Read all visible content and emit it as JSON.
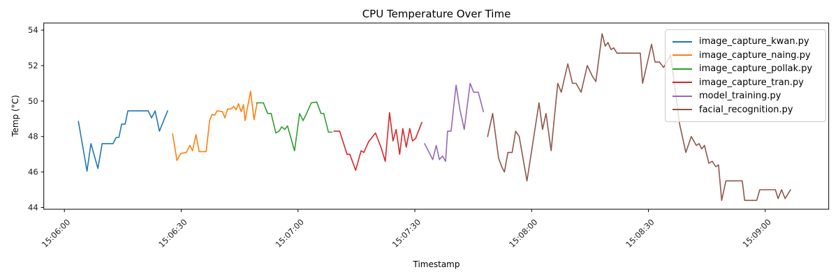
{
  "chart_data": {
    "type": "line",
    "title": "CPU Temperature Over Time",
    "xlabel": "Timestamp",
    "ylabel": "Temp (°C)",
    "grid": false,
    "legend_position": "upper right",
    "x_axis": {
      "unit": "seconds after 15:06:00",
      "min_s": -5.3,
      "max_s": 196.3,
      "tick_values_s": [
        0,
        30,
        60,
        90,
        120,
        150,
        180
      ],
      "tick_labels": [
        "15:06:00",
        "15:06:30",
        "15:07:00",
        "15:07:30",
        "15:08:00",
        "15:08:30",
        "15:09:00"
      ],
      "tick_label_rotation_deg": 45
    },
    "y_axis": {
      "min": 43.9,
      "max": 54.4,
      "tick_values": [
        44,
        46,
        48,
        50,
        52,
        54
      ],
      "tick_labels": [
        "44",
        "46",
        "48",
        "50",
        "52",
        "54"
      ]
    },
    "series": [
      {
        "name": "image_capture_kwan.py",
        "color": "#1f77b4",
        "points": [
          [
            3.6,
            48.85
          ],
          [
            5.8,
            46.05
          ],
          [
            6.8,
            47.6
          ],
          [
            8.6,
            46.2
          ],
          [
            9.7,
            47.6
          ],
          [
            12.5,
            47.6
          ],
          [
            13.3,
            47.95
          ],
          [
            14.0,
            47.95
          ],
          [
            14.7,
            48.7
          ],
          [
            15.6,
            48.7
          ],
          [
            16.3,
            49.45
          ],
          [
            21.5,
            49.45
          ],
          [
            22.4,
            49.05
          ],
          [
            23.3,
            49.45
          ],
          [
            24.4,
            48.3
          ],
          [
            26.5,
            49.45
          ]
        ]
      },
      {
        "name": "image_capture_naing.py",
        "color": "#ff7f0e",
        "points": [
          [
            27.8,
            48.15
          ],
          [
            28.9,
            46.65
          ],
          [
            29.9,
            47.05
          ],
          [
            31.3,
            47.1
          ],
          [
            32.2,
            47.5
          ],
          [
            32.9,
            47.2
          ],
          [
            33.8,
            48.1
          ],
          [
            34.6,
            47.15
          ],
          [
            36.4,
            47.15
          ],
          [
            37.3,
            48.9
          ],
          [
            37.9,
            49.25
          ],
          [
            38.6,
            49.2
          ],
          [
            39.2,
            49.45
          ],
          [
            40.6,
            49.4
          ],
          [
            41.2,
            49.05
          ],
          [
            41.9,
            49.55
          ],
          [
            42.8,
            49.55
          ],
          [
            43.5,
            49.7
          ],
          [
            44.1,
            49.5
          ],
          [
            44.7,
            49.85
          ],
          [
            45.4,
            49.4
          ],
          [
            46.0,
            49.8
          ],
          [
            46.4,
            48.9
          ],
          [
            47.8,
            50.55
          ],
          [
            48.7,
            48.95
          ],
          [
            49.5,
            49.9
          ]
        ]
      },
      {
        "name": "image_capture_pollak.py",
        "color": "#2ca02c",
        "points": [
          [
            49.3,
            49.9
          ],
          [
            51.1,
            49.9
          ],
          [
            52.2,
            49.3
          ],
          [
            53.1,
            49.3
          ],
          [
            54.3,
            48.2
          ],
          [
            55.1,
            48.3
          ],
          [
            55.8,
            48.55
          ],
          [
            56.6,
            48.4
          ],
          [
            57.3,
            48.6
          ],
          [
            59.1,
            47.2
          ],
          [
            60.4,
            49.3
          ],
          [
            61.3,
            48.9
          ],
          [
            62.2,
            49.3
          ],
          [
            63.4,
            49.9
          ],
          [
            64.8,
            49.95
          ],
          [
            65.9,
            49.3
          ],
          [
            66.6,
            49.3
          ],
          [
            67.8,
            48.25
          ],
          [
            68.7,
            48.25
          ]
        ]
      },
      {
        "name": "image_capture_tran.py",
        "color": "#d62728",
        "points": [
          [
            69.2,
            48.3
          ],
          [
            70.7,
            48.3
          ],
          [
            72.6,
            47.0
          ],
          [
            73.3,
            47.0
          ],
          [
            74.8,
            46.1
          ],
          [
            76.2,
            47.2
          ],
          [
            76.9,
            47.1
          ],
          [
            78.1,
            47.7
          ],
          [
            79.9,
            48.2
          ],
          [
            81.3,
            47.4
          ],
          [
            82.4,
            46.6
          ],
          [
            83.5,
            49.35
          ],
          [
            84.4,
            47.75
          ],
          [
            85.2,
            48.4
          ],
          [
            86.1,
            47.0
          ],
          [
            86.9,
            48.45
          ],
          [
            87.8,
            47.4
          ],
          [
            88.7,
            48.45
          ],
          [
            89.4,
            47.75
          ],
          [
            90.2,
            47.9
          ],
          [
            91.8,
            48.8
          ]
        ]
      },
      {
        "name": "model_training.py",
        "color": "#9467bd",
        "points": [
          [
            92.5,
            47.6
          ],
          [
            94.6,
            46.7
          ],
          [
            95.5,
            47.5
          ],
          [
            96.3,
            46.7
          ],
          [
            97.1,
            46.9
          ],
          [
            97.9,
            46.6
          ],
          [
            98.4,
            48.3
          ],
          [
            99.3,
            48.3
          ],
          [
            100.6,
            50.9
          ],
          [
            101.6,
            49.5
          ],
          [
            102.7,
            48.4
          ],
          [
            104.2,
            51.0
          ],
          [
            105.1,
            50.5
          ],
          [
            106.3,
            50.5
          ],
          [
            107.6,
            49.4
          ]
        ]
      },
      {
        "name": "facial_recognition.py",
        "color": "#8c564b",
        "points": [
          [
            108.7,
            48.0
          ],
          [
            110.0,
            49.3
          ],
          [
            111.5,
            46.8
          ],
          [
            112.3,
            46.3
          ],
          [
            113.0,
            46.0
          ],
          [
            113.9,
            47.1
          ],
          [
            115.0,
            47.1
          ],
          [
            115.9,
            48.3
          ],
          [
            116.8,
            48.0
          ],
          [
            118.8,
            45.5
          ],
          [
            121.9,
            49.9
          ],
          [
            122.8,
            48.4
          ],
          [
            123.7,
            49.3
          ],
          [
            125.0,
            47.2
          ],
          [
            126.7,
            51.0
          ],
          [
            127.6,
            50.5
          ],
          [
            129.3,
            52.1
          ],
          [
            130.5,
            51.0
          ],
          [
            131.4,
            51.0
          ],
          [
            132.7,
            50.5
          ],
          [
            134.3,
            52.0
          ],
          [
            135.6,
            51.4
          ],
          [
            136.5,
            51.1
          ],
          [
            138.1,
            53.8
          ],
          [
            138.9,
            53.1
          ],
          [
            139.6,
            53.3
          ],
          [
            140.4,
            52.9
          ],
          [
            141.1,
            53.0
          ],
          [
            141.9,
            52.7
          ],
          [
            142.6,
            52.7
          ],
          [
            147.9,
            52.7
          ],
          [
            148.5,
            51.0
          ],
          [
            150.8,
            53.2
          ],
          [
            151.7,
            52.2
          ],
          [
            152.8,
            52.2
          ],
          [
            153.9,
            51.9
          ],
          [
            155.7,
            52.6
          ],
          [
            158.0,
            48.7
          ],
          [
            159.6,
            47.1
          ],
          [
            161.0,
            48.0
          ],
          [
            162.3,
            47.5
          ],
          [
            163.0,
            47.6
          ],
          [
            163.7,
            47.3
          ],
          [
            164.4,
            47.5
          ],
          [
            165.5,
            46.5
          ],
          [
            166.4,
            46.6
          ],
          [
            167.3,
            46.3
          ],
          [
            168.0,
            46.4
          ],
          [
            168.8,
            44.4
          ],
          [
            169.9,
            45.5
          ],
          [
            174.1,
            45.5
          ],
          [
            174.7,
            44.4
          ],
          [
            177.8,
            44.4
          ],
          [
            178.6,
            45.0
          ],
          [
            182.6,
            45.0
          ],
          [
            183.3,
            44.5
          ],
          [
            184.2,
            45.0
          ],
          [
            185.1,
            44.5
          ],
          [
            186.5,
            45.0
          ]
        ]
      }
    ],
    "style": {
      "spine_color": "#000000",
      "tick_label_color": "#1a1a1a",
      "legend_border_color": "#cccccc",
      "background": "#ffffff"
    }
  }
}
